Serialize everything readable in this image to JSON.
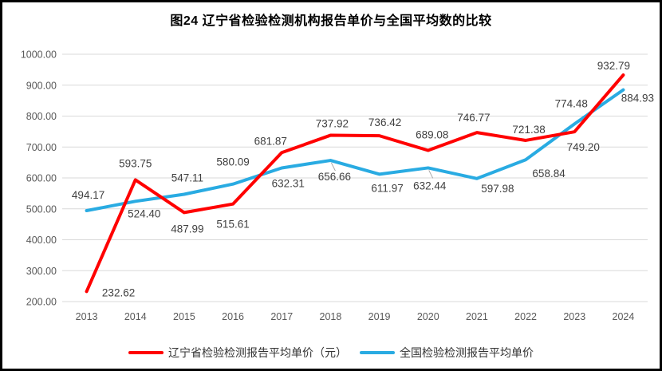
{
  "page": {
    "title": "图24 辽宁省检验检测机构报告单价与全国平均数的比较"
  },
  "chart_data": {
    "type": "line",
    "title": "图24 辽宁省检验检测机构报告单价与全国平均数的比较",
    "categories": [
      "2013",
      "2014",
      "2015",
      "2016",
      "2017",
      "2018",
      "2019",
      "2020",
      "2021",
      "2022",
      "2023",
      "2024"
    ],
    "ylim": [
      200,
      1000
    ],
    "ytick_step": 100,
    "ytick_format_decimals": 2,
    "grid": true,
    "legend_position": "bottom",
    "colors": {
      "gridline": "#D9D9D9",
      "tick_label": "#595959",
      "data_label": "#404040",
      "leader_line": "#A6A6A6",
      "frame_border": "#000000"
    },
    "series": [
      {
        "name": "辽宁省检验检测报告平均单价（元）",
        "color": "#FF0000",
        "values": [
          232.62,
          593.75,
          487.99,
          515.61,
          681.87,
          737.92,
          736.42,
          689.08,
          746.77,
          721.38,
          749.2,
          932.79
        ],
        "label_offsets": [
          [
            40,
            6
          ],
          [
            0,
            -16
          ],
          [
            4,
            25
          ],
          [
            0,
            30
          ],
          [
            -14,
            -10
          ],
          [
            2,
            -10
          ],
          [
            7,
            -12
          ],
          [
            5,
            -15
          ],
          [
            -4,
            -14
          ],
          [
            4,
            -9
          ],
          [
            11,
            24
          ],
          [
            -12,
            -7
          ]
        ],
        "leader_indices": []
      },
      {
        "name": "全国检验检测报告平均单价",
        "color": "#29ABE2",
        "values": [
          494.17,
          524.4,
          547.11,
          580.09,
          632.31,
          656.66,
          611.97,
          632.44,
          597.98,
          658.84,
          774.48,
          884.93
        ],
        "label_offsets": [
          [
            2,
            -15
          ],
          [
            11,
            20
          ],
          [
            4,
            -16
          ],
          [
            0,
            -23
          ],
          [
            8,
            24
          ],
          [
            5,
            25
          ],
          [
            10,
            22
          ],
          [
            2,
            27
          ],
          [
            26,
            17
          ],
          [
            29,
            22
          ],
          [
            -4,
            -21
          ],
          [
            18,
            15
          ]
        ],
        "leader_indices": [
          5,
          7
        ]
      }
    ]
  }
}
